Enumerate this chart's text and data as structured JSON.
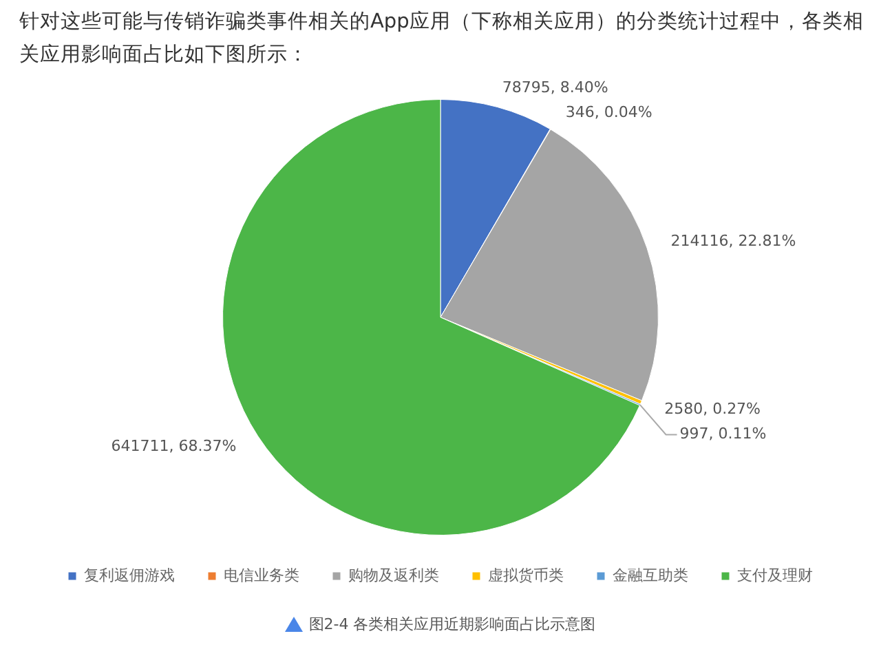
{
  "chart_data": {
    "type": "pie",
    "title": "针对这些可能与传销诈骗类事件相关的App应用（下称相关应用）的分类统计过程中，各类相关应用影响面占比如下图所示：",
    "categories": [
      "复利返佣游戏",
      "电信业务类",
      "购物及返利类",
      "虚拟货币类",
      "金融互助类",
      "支付及理财"
    ],
    "values": [
      78795,
      346,
      214116,
      2580,
      997,
      641711
    ],
    "value_labels": [
      "78795, 8.40%",
      "346, 0.04%",
      "214116, 22.81%",
      "2580, 0.27%",
      "997, 0.11%",
      "641711, 68.37%"
    ],
    "colors": [
      "#4472c4",
      "#ed7d31",
      "#a5a5a5",
      "#ffc000",
      "#5b9bd5",
      "#4cb648"
    ],
    "legend": "bottom",
    "annotations": [
      "图2-4 各类相关应用近期影响面占比示意图"
    ]
  }
}
